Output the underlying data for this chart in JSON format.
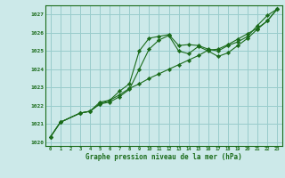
{
  "xlabel": "Graphe pression niveau de la mer (hPa)",
  "xlim": [
    -0.5,
    23.5
  ],
  "ylim": [
    1019.8,
    1027.5
  ],
  "yticks": [
    1020,
    1021,
    1022,
    1023,
    1024,
    1025,
    1026,
    1027
  ],
  "xticks": [
    0,
    1,
    2,
    3,
    4,
    5,
    6,
    7,
    8,
    9,
    10,
    11,
    12,
    13,
    14,
    15,
    16,
    17,
    18,
    19,
    20,
    21,
    22,
    23
  ],
  "bg_color": "#cce9e9",
  "grid_color": "#99cccc",
  "line_color": "#1a6b1a",
  "series": [
    {
      "x": [
        0,
        1,
        3,
        4,
        5,
        6,
        7,
        8,
        9,
        10,
        11,
        12,
        13,
        14,
        15,
        16,
        17,
        18,
        19,
        20,
        21,
        22,
        23
      ],
      "y": [
        1020.3,
        1021.1,
        1021.6,
        1021.7,
        1022.1,
        1022.3,
        1022.8,
        1023.2,
        1025.0,
        1025.7,
        1025.8,
        1025.9,
        1025.3,
        1025.35,
        1025.3,
        1025.1,
        1025.0,
        1025.3,
        1025.5,
        1025.8,
        1026.4,
        1026.95,
        1027.3
      ]
    },
    {
      "x": [
        0,
        1,
        3,
        4,
        5,
        6,
        7,
        8,
        9,
        10,
        11,
        12,
        13,
        14,
        15,
        16,
        17,
        18,
        19,
        20,
        21,
        22,
        23
      ],
      "y": [
        1020.3,
        1021.1,
        1021.6,
        1021.7,
        1022.1,
        1022.2,
        1022.5,
        1022.9,
        1024.0,
        1025.1,
        1025.6,
        1025.85,
        1025.0,
        1024.85,
        1025.25,
        1025.0,
        1024.7,
        1024.9,
        1025.3,
        1025.7,
        1026.2,
        1026.65,
        1027.3
      ]
    },
    {
      "x": [
        0,
        1,
        3,
        4,
        5,
        6,
        7,
        8,
        9,
        10,
        11,
        12,
        13,
        14,
        15,
        16,
        17,
        18,
        19,
        20,
        21,
        22,
        23
      ],
      "y": [
        1020.3,
        1021.1,
        1021.6,
        1021.7,
        1022.2,
        1022.3,
        1022.6,
        1022.95,
        1023.2,
        1023.5,
        1023.75,
        1024.0,
        1024.25,
        1024.5,
        1024.75,
        1025.05,
        1025.1,
        1025.35,
        1025.65,
        1025.95,
        1026.25,
        1026.65,
        1027.3
      ]
    }
  ]
}
